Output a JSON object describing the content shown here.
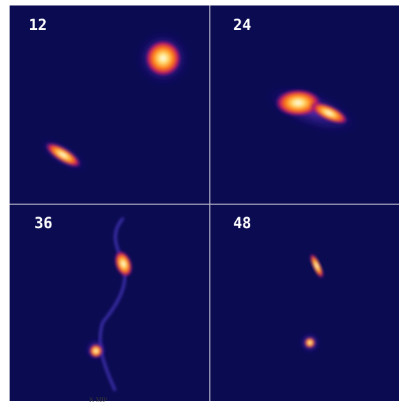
{
  "panels": [
    {
      "label": "12"
    },
    {
      "label": "24"
    },
    {
      "label": "36"
    },
    {
      "label": "48"
    }
  ],
  "caption": "K M0³"
}
